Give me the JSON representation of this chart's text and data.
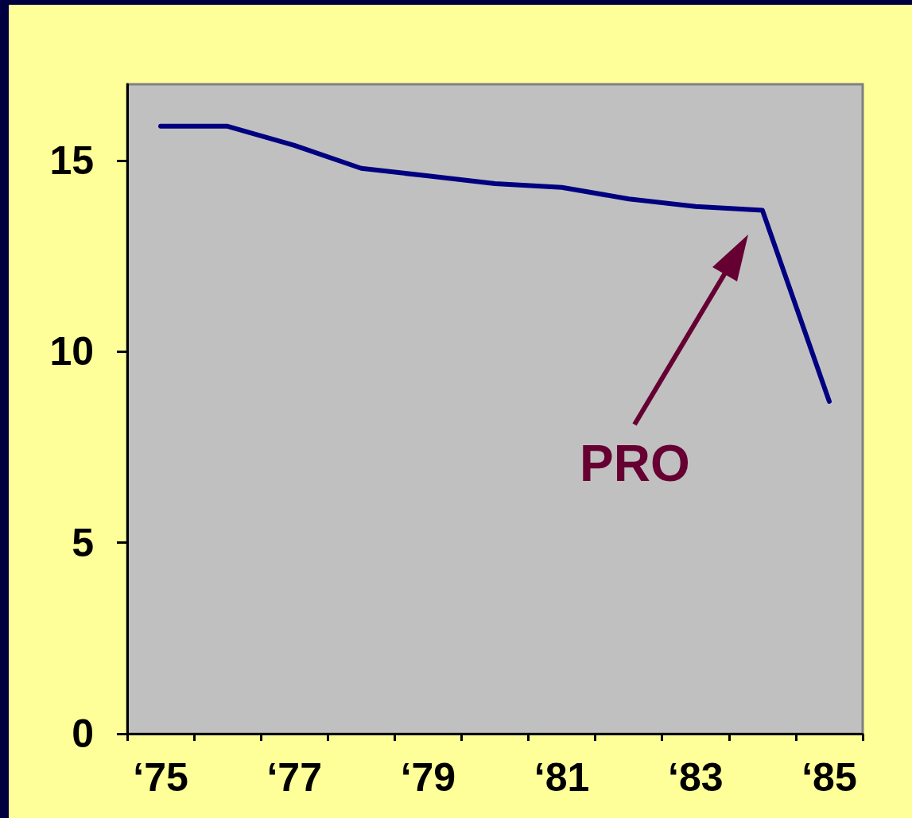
{
  "chart_data": {
    "type": "line",
    "categories": [
      "‘75",
      null,
      "‘77",
      null,
      "‘79",
      null,
      "‘81",
      null,
      "‘83",
      null,
      "‘85"
    ],
    "series": [
      {
        "color": "#000080",
        "values": [
          15.9,
          15.9,
          15.4,
          14.8,
          14.6,
          14.4,
          14.3,
          14.0,
          13.8,
          13.7,
          8.7
        ]
      }
    ],
    "ylim": [
      0,
      17
    ],
    "yticks": [
      0,
      5,
      10,
      15
    ],
    "marker": "none",
    "line_style": "solid",
    "annotations": [
      "PRO"
    ]
  }
}
